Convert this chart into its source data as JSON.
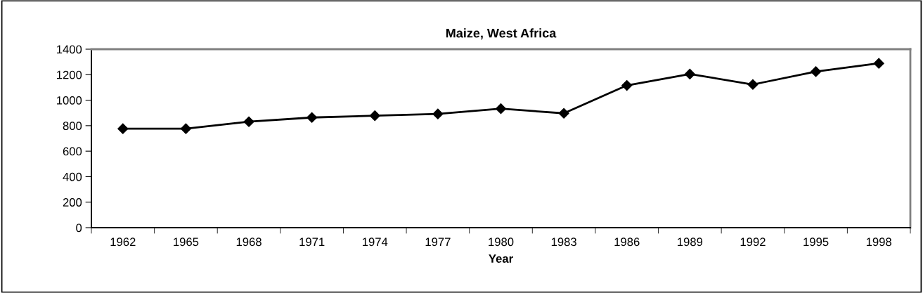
{
  "chart_data": {
    "type": "line",
    "title": "Maize, West Africa",
    "xlabel": "Year",
    "categories": [
      "1962",
      "1965",
      "1968",
      "1971",
      "1974",
      "1977",
      "1980",
      "1983",
      "1986",
      "1989",
      "1992",
      "1995",
      "1998"
    ],
    "series": [
      {
        "color": "#000000",
        "values": [
          776,
          776,
          831,
          864,
          878,
          892,
          933,
          897,
          1116,
          1205,
          1123,
          1224,
          1289
        ]
      }
    ],
    "ylim": [
      0,
      1400
    ],
    "yticks": [
      0,
      200,
      400,
      600,
      800,
      1000,
      1200,
      1400
    ],
    "grid": false,
    "legend": false,
    "marker": "diamond",
    "line_style": "solid"
  }
}
